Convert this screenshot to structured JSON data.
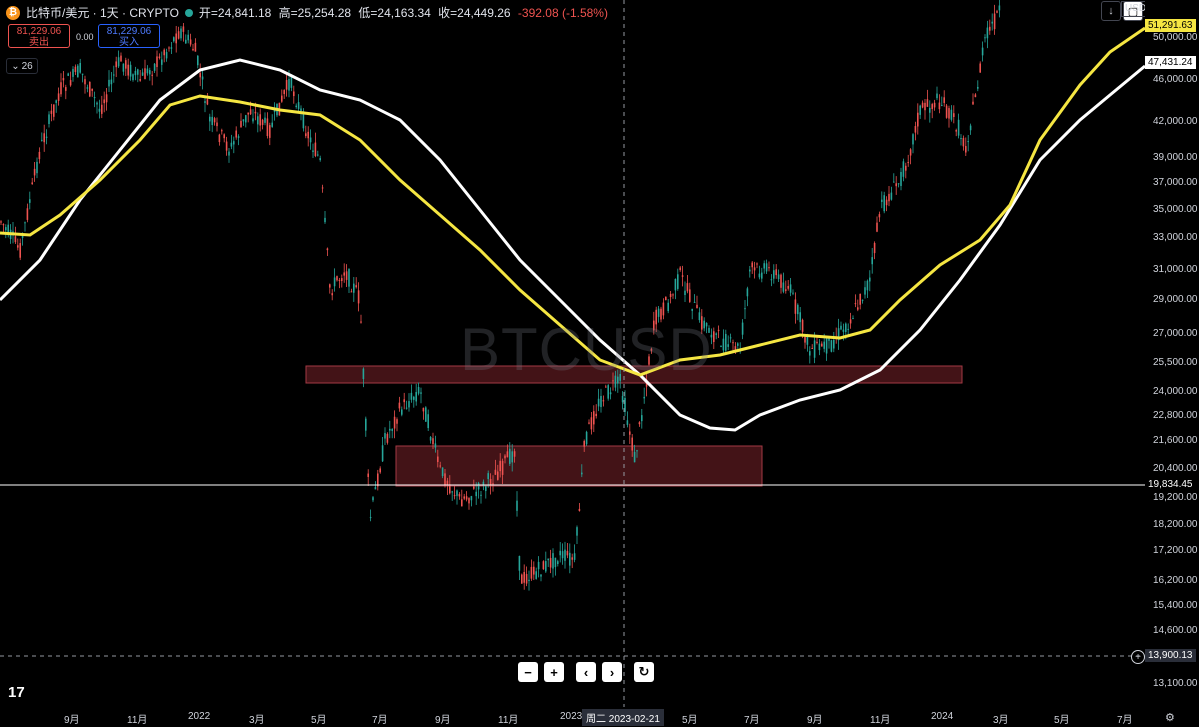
{
  "header": {
    "symbol": "比特币/美元 · 1天 · CRYPTO",
    "coin_glyph": "₿",
    "ohlc": {
      "open": "开=24,841.18",
      "high": "高=25,254.28",
      "low": "低=24,163.34",
      "close": "收=24,449.26",
      "change": "-392.08 (-1.58%)"
    }
  },
  "trade": {
    "sell_price": "81,229.06",
    "sell_label": "卖出",
    "spread": "0.00",
    "buy_price": "81,229.06",
    "buy_label": "买入"
  },
  "indicator_chip": {
    "value": "26"
  },
  "watermark": "BTCUSD",
  "currency": "USD",
  "price_axis": {
    "ticks": [
      "50,000.00",
      "46,000.00",
      "42,000.00",
      "39,000.00",
      "37,000.00",
      "35,000.00",
      "33,000.00",
      "31,000.00",
      "29,000.00",
      "27,000.00",
      "25,500.00",
      "24,000.00",
      "22,800.00",
      "21,600.00",
      "20,400.00",
      "19,200.00",
      "18,200.00",
      "17,200.00",
      "16,200.00",
      "15,400.00",
      "14,600.00",
      "13,100.00"
    ],
    "ma_yellow_label": "51,291.63",
    "ma_white_label": "47,431.24",
    "hline_label": "19,834.45",
    "crosshair_label": "13,900.13"
  },
  "time_axis": {
    "ticks": [
      "9月",
      "11月",
      "2022",
      "3月",
      "5月",
      "7月",
      "9月",
      "11月",
      "2023",
      "5月",
      "7月",
      "9月",
      "11月",
      "2024",
      "3月",
      "5月",
      "7月"
    ],
    "crosshair_date": "周二 2023-02-21"
  },
  "nav_buttons": [
    "−",
    "+",
    "‹",
    "›",
    "↻"
  ],
  "logo_text": "17",
  "colors": {
    "ma_fast": "#f5e642",
    "ma_slow": "#ffffff",
    "zone": "#5a1a1f",
    "up": "#26a69a",
    "down": "#ef5350"
  }
}
